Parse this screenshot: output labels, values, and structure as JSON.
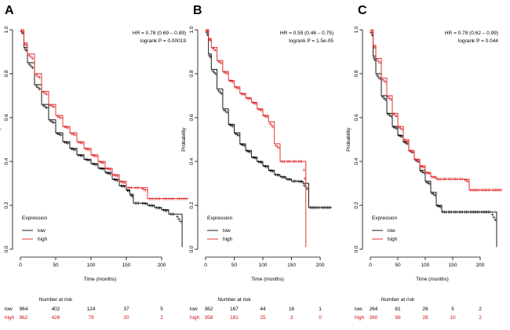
{
  "figure": {
    "shared": {
      "xlabel": "Time (months)",
      "ylabel": "Probability",
      "ylim": [
        0,
        1
      ],
      "y_ticks": [
        "0.0",
        "0.2",
        "0.4",
        "0.6",
        "0.8",
        "1.0"
      ],
      "x_ticks": [
        "0",
        "50",
        "100",
        "150",
        "200"
      ],
      "legend_title": "Expression",
      "legend_low": "low",
      "legend_high": "high",
      "number_at_risk_label": "Number at risk",
      "colors": {
        "low": "#000000",
        "high": "#e02020"
      }
    }
  },
  "chart_data": [
    {
      "panel": "A",
      "type": "line",
      "title": "",
      "xlabel": "Time (months)",
      "ylabel": "Probability",
      "xlim": [
        0,
        240
      ],
      "ylim": [
        0,
        1
      ],
      "stats_hr": "HR = 0.78 (0.69 – 0.89)",
      "stats_p": "logrank P = 0.00019",
      "series": [
        {
          "name": "low",
          "x": [
            0,
            5,
            10,
            20,
            30,
            40,
            50,
            60,
            70,
            80,
            90,
            100,
            110,
            120,
            130,
            140,
            150,
            155,
            160,
            170,
            180,
            190,
            200,
            210,
            220,
            229
          ],
          "y": [
            1.0,
            0.92,
            0.85,
            0.75,
            0.66,
            0.59,
            0.53,
            0.49,
            0.46,
            0.43,
            0.41,
            0.39,
            0.37,
            0.35,
            0.32,
            0.29,
            0.27,
            0.25,
            0.21,
            0.21,
            0.2,
            0.19,
            0.18,
            0.16,
            0.16,
            0.01
          ]
        },
        {
          "name": "high",
          "x": [
            0,
            5,
            10,
            20,
            30,
            40,
            50,
            60,
            70,
            80,
            90,
            100,
            110,
            120,
            130,
            140,
            150,
            160,
            170,
            180,
            200,
            220,
            238
          ],
          "y": [
            1.0,
            0.94,
            0.89,
            0.8,
            0.72,
            0.66,
            0.61,
            0.56,
            0.53,
            0.49,
            0.46,
            0.43,
            0.4,
            0.37,
            0.34,
            0.31,
            0.28,
            0.28,
            0.28,
            0.23,
            0.23,
            0.23,
            0.23
          ]
        }
      ],
      "risk_times": [
        "0",
        "50",
        "100",
        "150",
        "200"
      ],
      "risk_low": [
        "964",
        "402",
        "124",
        "37",
        "5"
      ],
      "risk_high": [
        "962",
        "426",
        "79",
        "20",
        "2"
      ]
    },
    {
      "panel": "B",
      "type": "line",
      "title": "",
      "xlabel": "Time (months)",
      "ylabel": "Probability",
      "xlim": [
        0,
        230
      ],
      "ylim": [
        0,
        1
      ],
      "stats_hr": "HR = 0.59 (0.46 – 0.75)",
      "stats_p": "logrank P = 1.5e-05",
      "series": [
        {
          "name": "low",
          "x": [
            0,
            5,
            10,
            20,
            30,
            40,
            50,
            60,
            70,
            80,
            90,
            100,
            110,
            120,
            130,
            140,
            150,
            160,
            170,
            180,
            200,
            220
          ],
          "y": [
            1.0,
            0.89,
            0.82,
            0.73,
            0.64,
            0.57,
            0.53,
            0.48,
            0.45,
            0.42,
            0.4,
            0.38,
            0.36,
            0.34,
            0.33,
            0.32,
            0.31,
            0.31,
            0.3,
            0.19,
            0.19,
            0.19
          ]
        },
        {
          "name": "high",
          "x": [
            0,
            5,
            10,
            20,
            30,
            40,
            50,
            60,
            70,
            80,
            90,
            100,
            110,
            120,
            130,
            140,
            150,
            160,
            170,
            175
          ],
          "y": [
            1.0,
            0.96,
            0.92,
            0.86,
            0.81,
            0.77,
            0.74,
            0.71,
            0.69,
            0.67,
            0.64,
            0.61,
            0.58,
            0.48,
            0.4,
            0.4,
            0.4,
            0.4,
            0.4,
            0.01
          ]
        }
      ],
      "risk_times": [
        "0",
        "50",
        "100",
        "150",
        "200"
      ],
      "risk_low": [
        "362",
        "167",
        "44",
        "16",
        "1"
      ],
      "risk_high": [
        "358",
        "181",
        "25",
        "3",
        "0"
      ]
    },
    {
      "panel": "C",
      "type": "line",
      "title": "",
      "xlabel": "Time (months)",
      "ylabel": "Probability",
      "xlim": [
        0,
        240
      ],
      "ylim": [
        0,
        1
      ],
      "stats_hr": "HR = 0.78 (0.62 – 0.99)",
      "stats_p": "logrank P = 0.044",
      "series": [
        {
          "name": "low",
          "x": [
            0,
            5,
            10,
            20,
            30,
            40,
            50,
            60,
            70,
            80,
            90,
            100,
            110,
            120,
            130,
            140,
            150,
            160,
            170,
            180,
            200,
            220,
            230
          ],
          "y": [
            1.0,
            0.88,
            0.8,
            0.7,
            0.62,
            0.56,
            0.52,
            0.49,
            0.45,
            0.41,
            0.36,
            0.31,
            0.26,
            0.2,
            0.17,
            0.17,
            0.17,
            0.17,
            0.17,
            0.17,
            0.17,
            0.17,
            0.01
          ]
        },
        {
          "name": "high",
          "x": [
            0,
            5,
            10,
            20,
            30,
            40,
            50,
            60,
            70,
            80,
            90,
            100,
            110,
            120,
            130,
            140,
            150,
            160,
            170,
            180,
            200,
            220,
            240
          ],
          "y": [
            1.0,
            0.93,
            0.87,
            0.78,
            0.7,
            0.62,
            0.56,
            0.5,
            0.45,
            0.41,
            0.38,
            0.35,
            0.33,
            0.32,
            0.32,
            0.32,
            0.32,
            0.32,
            0.32,
            0.27,
            0.27,
            0.27,
            0.27
          ]
        }
      ],
      "risk_times": [
        "0",
        "50",
        "100",
        "150",
        "200"
      ],
      "risk_low": [
        "264",
        "81",
        "26",
        "5",
        "2"
      ],
      "risk_high": [
        "260",
        "98",
        "28",
        "10",
        "2"
      ]
    }
  ]
}
